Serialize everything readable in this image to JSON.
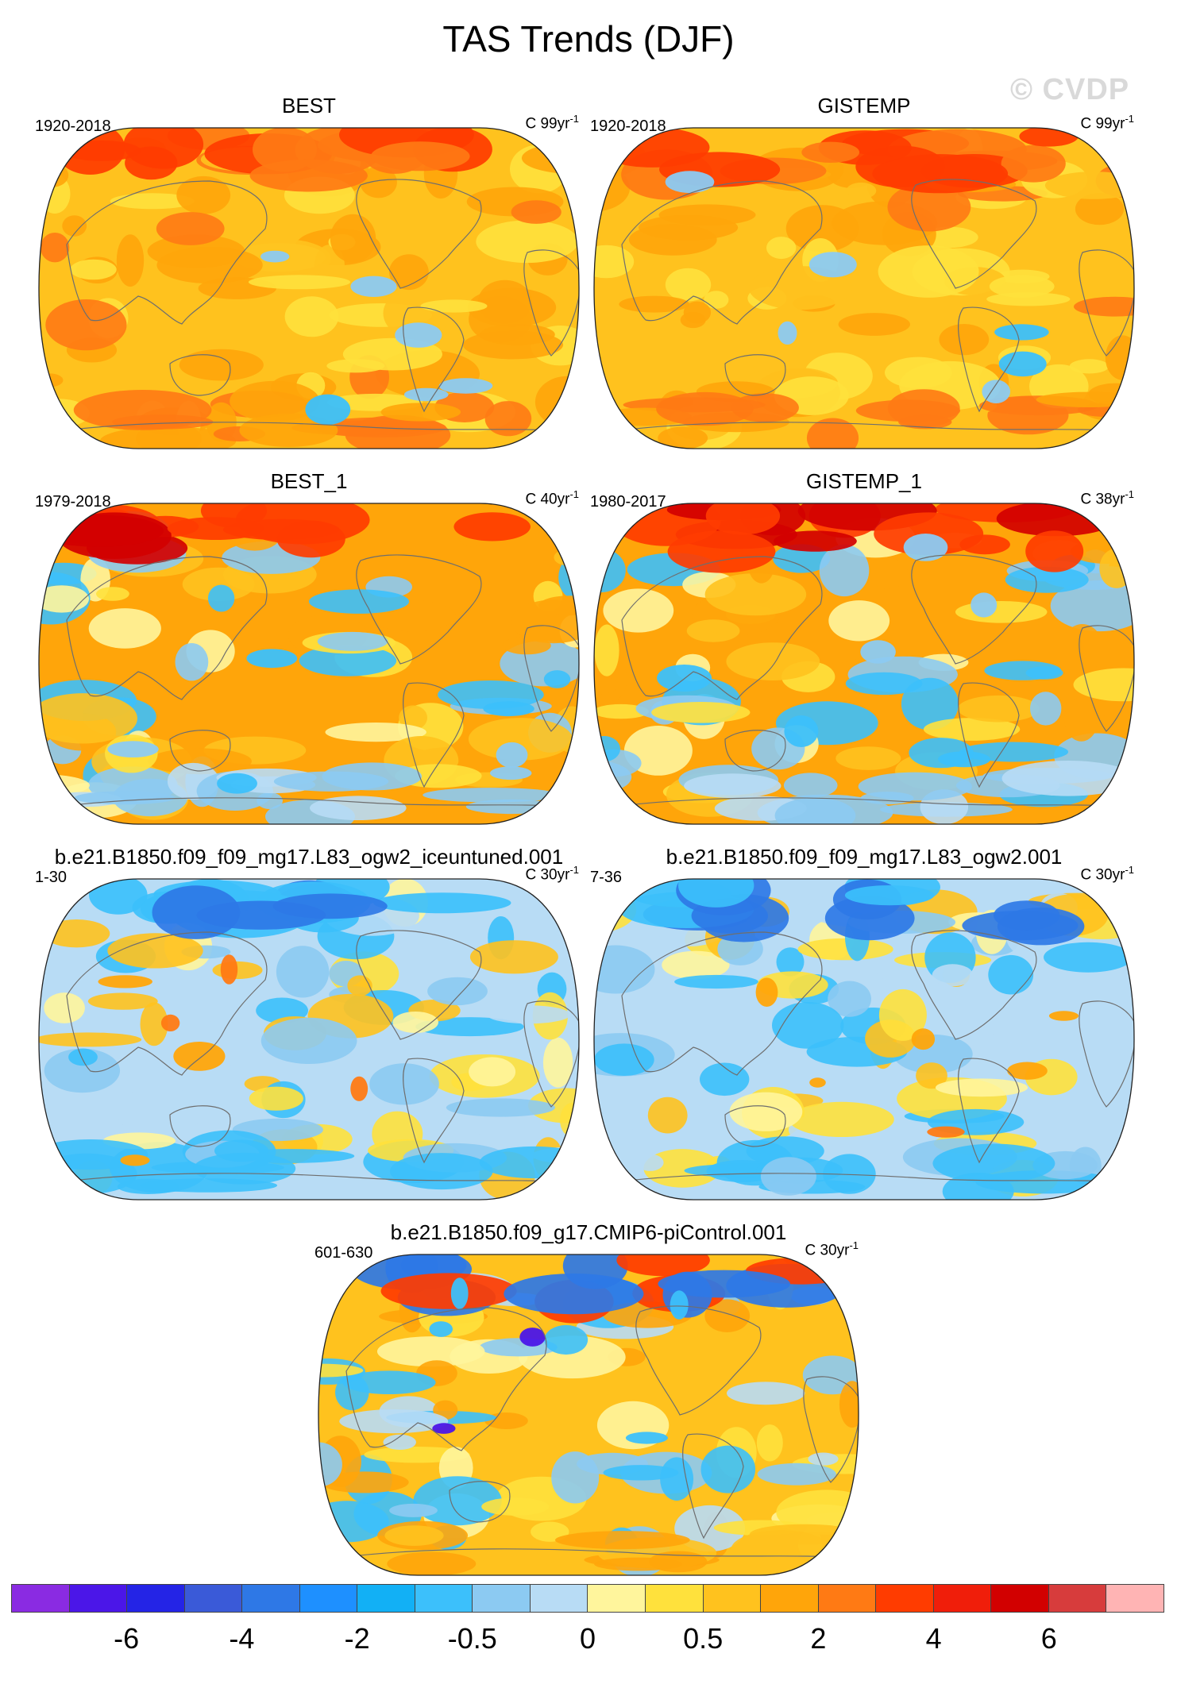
{
  "figure_title": "TAS Trends (DJF)",
  "watermark": "© CVDP",
  "panels": [
    {
      "title": "BEST",
      "years": "1920-2018",
      "units": "C 99yr",
      "exp": "-1",
      "scheme": "warm-strong"
    },
    {
      "title": "GISTEMP",
      "years": "1920-2018",
      "units": "C 99yr",
      "exp": "-1",
      "scheme": "warm-strong"
    },
    {
      "title": "BEST_1",
      "years": "1979-2018",
      "units": "C 40yr",
      "exp": "-1",
      "scheme": "warm-mixed"
    },
    {
      "title": "GISTEMP_1",
      "years": "1980-2017",
      "units": "C 38yr",
      "exp": "-1",
      "scheme": "warm-mixed"
    },
    {
      "title": "b.e21.B1850.f09_f09_mg17.L83_ogw2_iceuntuned.001",
      "years": "1-30",
      "units": "C 30yr",
      "exp": "-1",
      "scheme": "cool-mixed"
    },
    {
      "title": "b.e21.B1850.f09_f09_mg17.L83_ogw2.001",
      "years": "7-36",
      "units": "C 30yr",
      "exp": "-1",
      "scheme": "cool-mixed"
    },
    {
      "title": "b.e21.B1850.f09_g17.CMIP6-piControl.001",
      "years": "601-630",
      "units": "C 30yr",
      "exp": "-1",
      "scheme": "neutral-mixed"
    }
  ],
  "colorbar": {
    "colors": [
      "#8a2be2",
      "#4b16e8",
      "#2424e6",
      "#3a5ad8",
      "#2e78e6",
      "#1e90ff",
      "#12b0f5",
      "#3cc0fb",
      "#8ccaf2",
      "#b8dcf5",
      "#fff59c",
      "#ffe13c",
      "#ffc21e",
      "#ffa50a",
      "#ff7a14",
      "#ff3c00",
      "#f01e0a",
      "#d20000",
      "#d73c3c",
      "#ffb4b4"
    ],
    "tick_labels": [
      "-6",
      "-4",
      "-2",
      "-0.5",
      "0",
      "0.5",
      "2",
      "4",
      "6"
    ]
  }
}
